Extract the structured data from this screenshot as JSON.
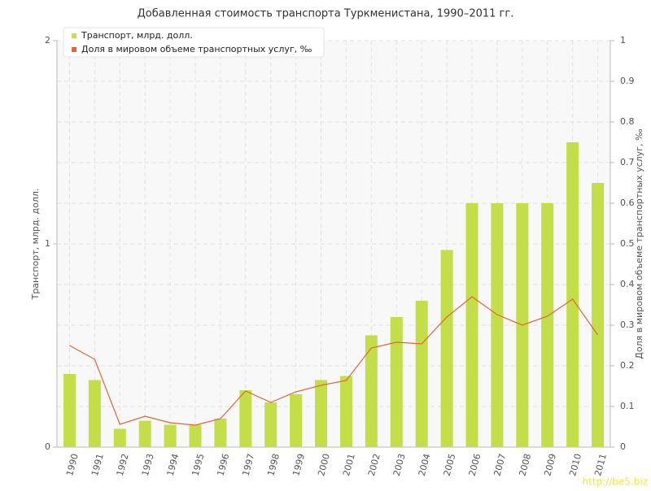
{
  "chart_data": {
    "type": "bar_line",
    "title": "Добавленная стоимость транспорта Туркменистана, 1990–2011 гг.",
    "y_label": "Транспорт, млрд. долл.",
    "y2_label": "Доля в мировом объеме транспортных услуг, ‰",
    "categories": [
      "1990",
      "1991",
      "1992",
      "1993",
      "1994",
      "1995",
      "1996",
      "1997",
      "1998",
      "1999",
      "2000",
      "2001",
      "2002",
      "2003",
      "2004",
      "2005",
      "2006",
      "2007",
      "2008",
      "2009",
      "2010",
      "2011"
    ],
    "series": [
      {
        "name": "Транспорт, млрд. долл.",
        "color": "#c3de48",
        "kind": "bar",
        "values": [
          0.36,
          0.33,
          0.09,
          0.13,
          0.11,
          0.11,
          0.14,
          0.28,
          0.22,
          0.26,
          0.33,
          0.35,
          0.55,
          0.64,
          0.72,
          0.97,
          1.2,
          1.2,
          1.2,
          1.2,
          1.5,
          1.3
        ]
      },
      {
        "name": "Доля в мировом объеме транспортных услуг, ‰",
        "color": "#e0663a",
        "kind": "line",
        "axis": "y2",
        "values": [
          0.25,
          0.216,
          0.056,
          0.076,
          0.06,
          0.054,
          0.07,
          0.138,
          0.11,
          0.136,
          0.152,
          0.164,
          0.244,
          0.258,
          0.254,
          0.32,
          0.37,
          0.326,
          0.3,
          0.322,
          0.364,
          0.276
        ]
      }
    ],
    "ylim": [
      0,
      2
    ],
    "yticks": [
      0,
      1,
      2
    ],
    "y2lim": [
      0,
      1
    ],
    "y2ticks": [
      0,
      0.1,
      0.2,
      0.3,
      0.4,
      0.5,
      0.6,
      0.7,
      0.8,
      0.9,
      1
    ],
    "grid": true,
    "legend": "top-left",
    "watermark": "http://be5.biz"
  }
}
